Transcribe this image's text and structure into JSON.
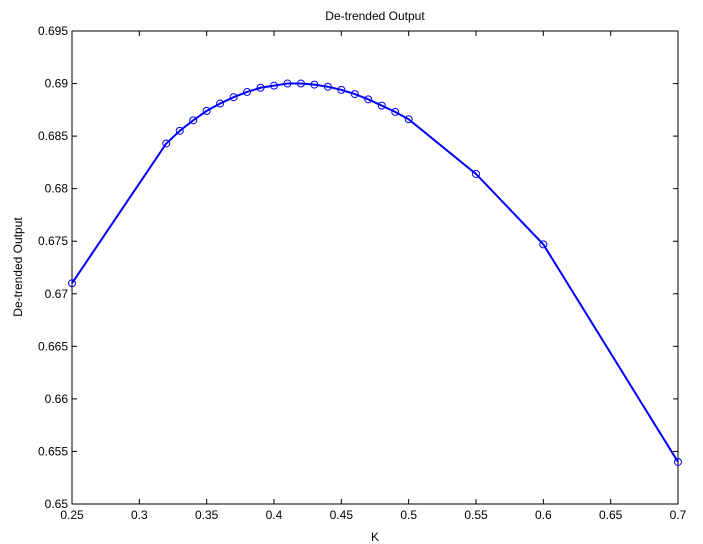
{
  "chart_data": {
    "type": "line",
    "title": "De-trended Output",
    "xlabel": "K",
    "ylabel": "De-trended Output",
    "xlim": [
      0.25,
      0.7
    ],
    "ylim": [
      0.65,
      0.695
    ],
    "xticks": [
      0.25,
      0.3,
      0.35,
      0.4,
      0.45,
      0.5,
      0.55,
      0.6,
      0.65,
      0.7
    ],
    "yticks": [
      0.65,
      0.655,
      0.66,
      0.665,
      0.67,
      0.675,
      0.68,
      0.685,
      0.69,
      0.695
    ],
    "x_tick_labels": [
      "0.25",
      "0.3",
      "0.35",
      "0.4",
      "0.45",
      "0.5",
      "0.55",
      "0.6",
      "0.65",
      "0.7"
    ],
    "y_tick_labels": [
      "0.65",
      "0.655",
      "0.66",
      "0.665",
      "0.67",
      "0.675",
      "0.68",
      "0.685",
      "0.69",
      "0.695"
    ],
    "grid": false,
    "marker": "circle",
    "color": "#0000ff",
    "series": [
      {
        "x": [
          0.25,
          0.32,
          0.33,
          0.34,
          0.35,
          0.36,
          0.37,
          0.38,
          0.39,
          0.4,
          0.41,
          0.42,
          0.43,
          0.44,
          0.45,
          0.46,
          0.47,
          0.48,
          0.49,
          0.5,
          0.55,
          0.6,
          0.7
        ],
        "y": [
          0.671,
          0.6843,
          0.6855,
          0.6865,
          0.6874,
          0.6881,
          0.6887,
          0.6892,
          0.6896,
          0.6898,
          0.69,
          0.69,
          0.6899,
          0.6897,
          0.6894,
          0.689,
          0.6885,
          0.6879,
          0.6873,
          0.6866,
          0.6814,
          0.6747,
          0.654
        ]
      }
    ]
  }
}
